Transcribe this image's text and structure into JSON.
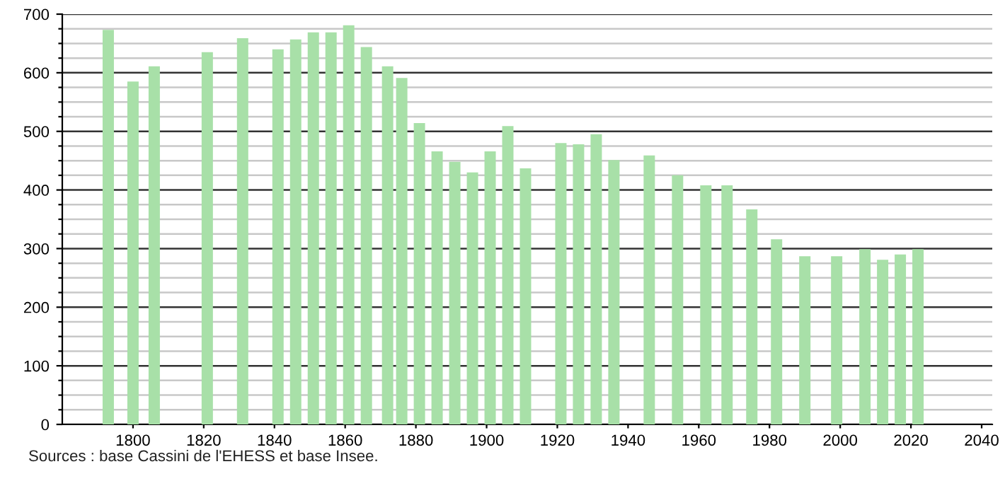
{
  "chart_data": {
    "type": "bar",
    "color": "#a8e0a8",
    "x": [
      1793,
      1800,
      1806,
      1821,
      1831,
      1841,
      1846,
      1851,
      1856,
      1861,
      1866,
      1872,
      1876,
      1881,
      1886,
      1891,
      1896,
      1901,
      1906,
      1911,
      1921,
      1926,
      1931,
      1936,
      1946,
      1954,
      1962,
      1968,
      1975,
      1982,
      1990,
      1999,
      2007,
      2012,
      2017,
      2022
    ],
    "values": [
      673,
      585,
      611,
      635,
      659,
      640,
      657,
      669,
      669,
      681,
      644,
      611,
      591,
      514,
      466,
      448,
      430,
      466,
      509,
      437,
      480,
      478,
      495,
      451,
      459,
      425,
      408,
      408,
      367,
      316,
      287,
      287,
      299,
      281,
      290,
      299
    ],
    "xlim": [
      1780,
      2043
    ],
    "xticks": [
      1800,
      1820,
      1840,
      1860,
      1880,
      1900,
      1920,
      1940,
      1960,
      1980,
      2000,
      2020,
      2040
    ],
    "ylim": [
      0,
      700
    ],
    "yticks": [
      0,
      {
        "value": 25,
        "label": null
      },
      {
        "value": 50,
        "label": null
      },
      {
        "value": 75,
        "label": null
      },
      100,
      {
        "value": 125,
        "label": null
      },
      {
        "value": 150,
        "label": null
      },
      {
        "value": 175,
        "label": null
      },
      200,
      {
        "value": 225,
        "label": null
      },
      {
        "value": 250,
        "label": null
      },
      {
        "value": 275,
        "label": null
      },
      300,
      {
        "value": 325,
        "label": null
      },
      {
        "value": 350,
        "label": null
      },
      {
        "value": 375,
        "label": null
      },
      400,
      {
        "value": 425,
        "label": null
      },
      {
        "value": 450,
        "label": null
      },
      {
        "value": 475,
        "label": null
      },
      500,
      {
        "value": 525,
        "label": null
      },
      {
        "value": 550,
        "label": null
      },
      {
        "value": 575,
        "label": null
      },
      600,
      {
        "value": 625,
        "label": null
      },
      {
        "value": 650,
        "label": null
      },
      {
        "value": 675,
        "label": null
      },
      700
    ],
    "grid": "y",
    "annotations": [
      "Sources : base Cassini de l'EHESS et base Insee."
    ]
  }
}
